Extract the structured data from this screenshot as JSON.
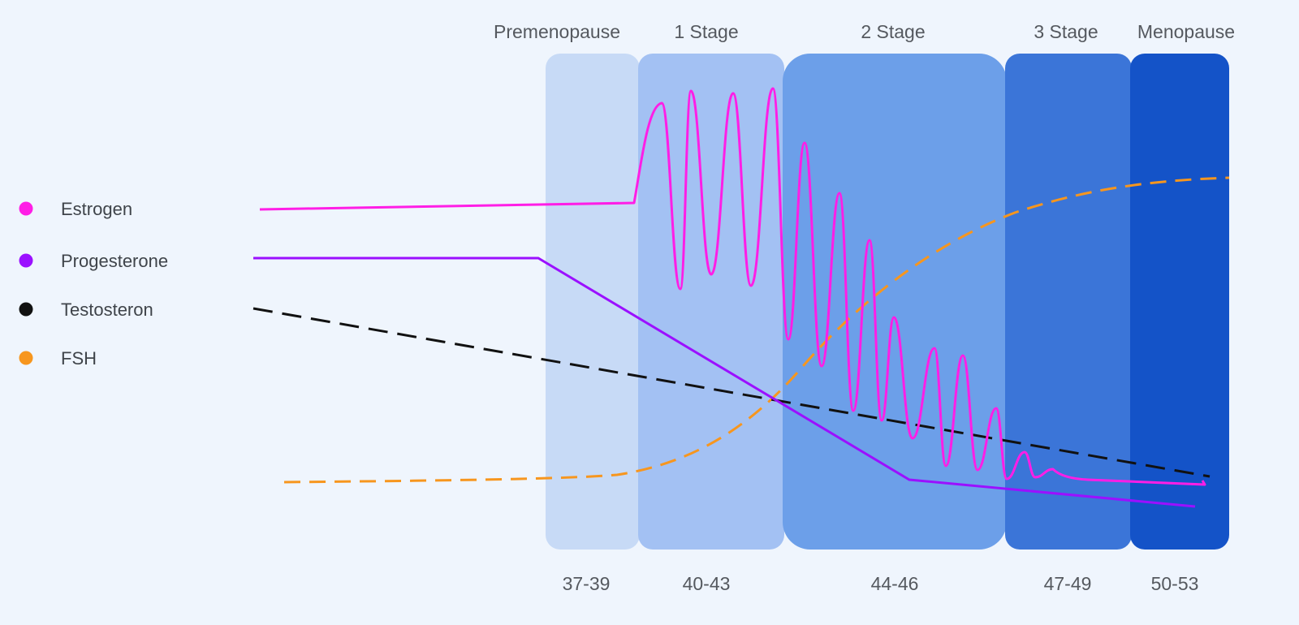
{
  "chart_data": {
    "type": "line",
    "title": "",
    "xlabel": "",
    "ylabel": "",
    "grid": false,
    "legend_position": "left",
    "stages": [
      {
        "name": "Premenopause",
        "ages": "37-39",
        "color": "#c7daf6"
      },
      {
        "name": "1 Stage",
        "ages": "40-43",
        "color": "#a3c1f3"
      },
      {
        "name": "2 Stage",
        "ages": "44-46",
        "color": "#6c9fe9"
      },
      {
        "name": "3 Stage",
        "ages": "47-49",
        "color": "#3b75d8"
      },
      {
        "name": "Menopause",
        "ages": "50-53",
        "color": "#1453c8"
      }
    ],
    "series": [
      {
        "name": "Estrogen",
        "color": "#ff1ee6",
        "style": "solid-oscillating"
      },
      {
        "name": "Progesterone",
        "color": "#9b10ff",
        "style": "solid"
      },
      {
        "name": "Testosteron",
        "color": "#111111",
        "style": "dashed"
      },
      {
        "name": "FSH",
        "color": "#f7961e",
        "style": "dashed"
      }
    ]
  }
}
